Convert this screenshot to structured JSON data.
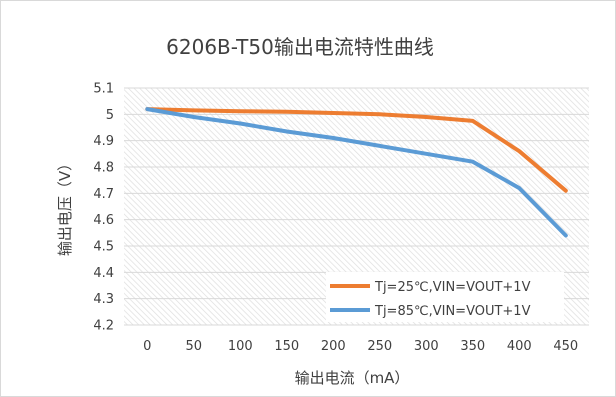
{
  "chart_data": {
    "type": "line",
    "title": "6206B-T50输出电流特性曲线",
    "xlabel": "输出电流（mA）",
    "ylabel": "输出电压（V）",
    "categories": [
      "0",
      "50",
      "100",
      "150",
      "200",
      "250",
      "300",
      "350",
      "400",
      "450"
    ],
    "x": [
      0,
      50,
      100,
      150,
      200,
      250,
      300,
      350,
      400,
      450
    ],
    "ylim": [
      4.2,
      5.1
    ],
    "yticks": [
      "4.2",
      "4.3",
      "4.4",
      "4.5",
      "4.6",
      "4.7",
      "4.8",
      "4.9",
      "5",
      "5.1"
    ],
    "grid": true,
    "legend_position": "bottom-right inside",
    "series": [
      {
        "name": "Tj=25℃,VIN=VOUT+1V",
        "color": "#ED7D31",
        "values": [
          5.02,
          5.015,
          5.012,
          5.01,
          5.005,
          5.0,
          4.99,
          4.975,
          4.86,
          4.71
        ]
      },
      {
        "name": "Tj=85℃,VIN=VOUT+1V",
        "color": "#5B9BD5",
        "values": [
          5.02,
          4.99,
          4.965,
          4.935,
          4.91,
          4.88,
          4.85,
          4.82,
          4.72,
          4.54
        ]
      }
    ]
  }
}
